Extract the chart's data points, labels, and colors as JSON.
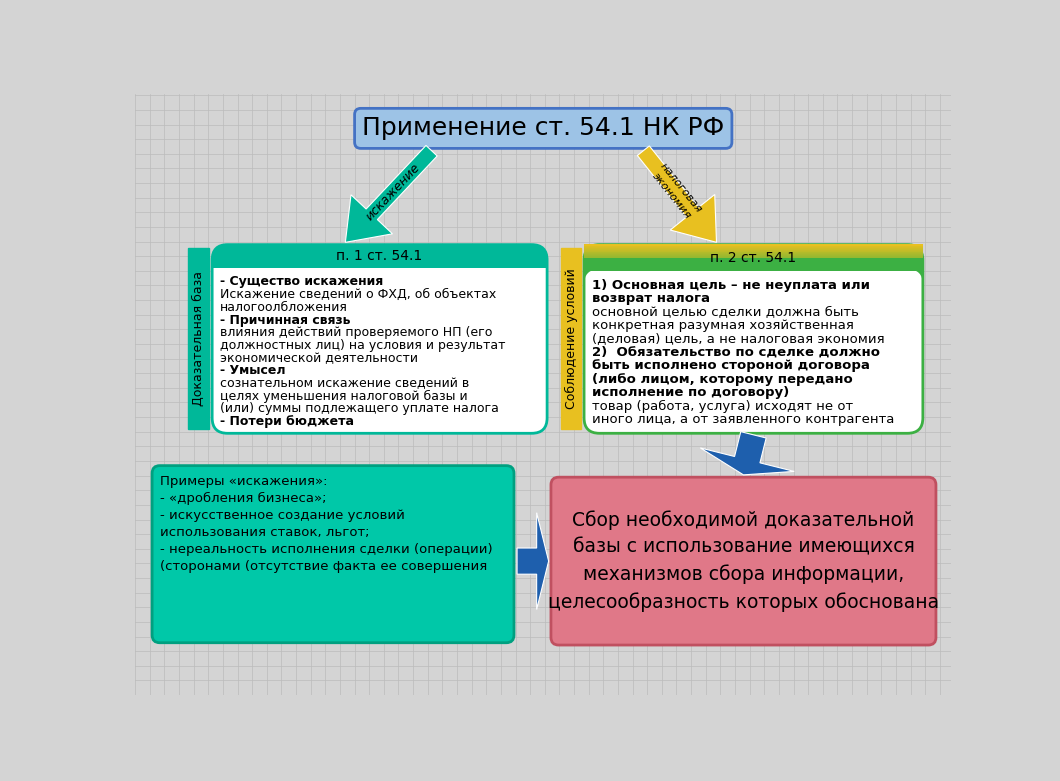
{
  "bg_color": "#d4d4d4",
  "grid_color": "#bbbbbb",
  "title_text": "Применение ст. 54.1 НК РФ",
  "title_box_color": "#9dc3e6",
  "title_box_edge": "#4472c4",
  "title_fontsize": 18,
  "left_box_header": "п. 1 ст. 54.1",
  "left_box_header_color": "#00b899",
  "left_box_bg": "#ffffff",
  "left_box_border": "#00b899",
  "right_box_header": "п. 2 ст. 54.1",
  "right_box_bg": "#ffffff",
  "right_box_border": "#3cb043",
  "left_sidebar_color": "#00b899",
  "left_sidebar_text": "Доказательная база",
  "right_sidebar_color": "#e8c020",
  "right_sidebar_text": "Соблюдение условий",
  "arrow_left_color": "#00b899",
  "arrow_left_text": "искажение",
  "arrow_right_color": "#e8c020",
  "arrow_right_text": "налоговая\nэкономия",
  "bottom_left_bg": "#00c8a8",
  "bottom_left_border": "#00a080",
  "bottom_left_text": "Примеры «искажения»:\n- «дробления бизнеса»;\n- искусственное создание условий\nиспользования ставок, льгот;\n- нереальность исполнения сделки (операции)\n(сторонами (отсутствие факта ее совершения",
  "bottom_right_bg": "#e07888",
  "bottom_right_border": "#c05060",
  "bottom_right_text": "Сбор необходимой доказательной\nбазы с использование имеющихся\nмеханизмов сбора информации,\nцелесообразность которых обоснована",
  "arrow_down_color": "#1e5fad",
  "arrow_horiz_color": "#1e5fad",
  "left_box_lines": [
    [
      true,
      "- Существо искажения"
    ],
    [
      false,
      "Искажение сведений о ФХД, об объектах"
    ],
    [
      false,
      "налогоолбложения"
    ],
    [
      true,
      "- Причинная связь"
    ],
    [
      false,
      "влияния действий проверяемого НП (его"
    ],
    [
      false,
      "должностных лиц) на условия и результат"
    ],
    [
      false,
      "экономической деятельности"
    ],
    [
      true,
      "- Умысел"
    ],
    [
      false,
      "сознательном искажение сведений в"
    ],
    [
      false,
      "целях уменьшения налоговой базы и"
    ],
    [
      false,
      "(или) суммы подлежащего уплате налога"
    ],
    [
      true,
      "- Потери бюджета"
    ]
  ],
  "right_box_lines": [
    [
      true,
      "1) Основная цель – не неуплата или"
    ],
    [
      true,
      "возврат налога"
    ],
    [
      false,
      "основной целью сделки должна быть"
    ],
    [
      false,
      "конкретная разумная хозяйственная"
    ],
    [
      false,
      "(деловая) цель, а не налоговая экономия"
    ],
    [
      true,
      "2)  Обязательство по сделке должно"
    ],
    [
      true,
      "быть исполнено стороной договора"
    ],
    [
      true,
      "(либо лицом, которому передано"
    ],
    [
      true,
      "исполнение по договору)"
    ],
    [
      false,
      "товар (работа, услуга) исходят не от"
    ],
    [
      false,
      "иного лица, а от заявленного контрагента"
    ]
  ]
}
